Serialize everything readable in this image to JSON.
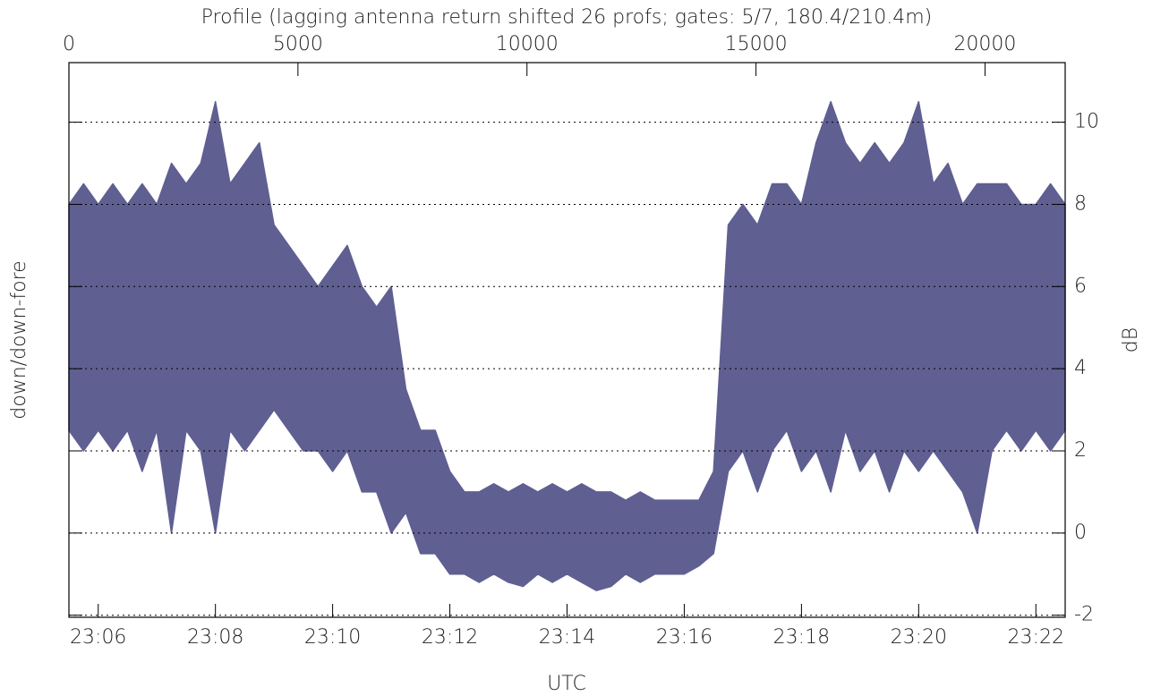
{
  "chart_data": {
    "type": "range",
    "title": "Profile (lagging antenna return shifted 26 profs; gates: 5/7, 180.4/210.4m)",
    "xlabel": "UTC",
    "ylabel": "down/down-fore",
    "y2label": "dB",
    "color": "#5f5f92",
    "grid": true,
    "xlim": [
      1385.5,
      1402.5
    ],
    "xticks": [
      {
        "value": 1386,
        "label": "23:06"
      },
      {
        "value": 1388,
        "label": "23:08"
      },
      {
        "value": 1390,
        "label": "23:10"
      },
      {
        "value": 1392,
        "label": "23:12"
      },
      {
        "value": 1394,
        "label": "23:14"
      },
      {
        "value": 1396,
        "label": "23:16"
      },
      {
        "value": 1398,
        "label": "23:18"
      },
      {
        "value": 1400,
        "label": "23:20"
      },
      {
        "value": 1402,
        "label": "23:22"
      }
    ],
    "x2lim": [
      0,
      21750
    ],
    "x2ticks": [
      0,
      5000,
      10000,
      15000,
      20000
    ],
    "ylim": [
      -2.05,
      11.45
    ],
    "yticks": [
      -2,
      0,
      2,
      4,
      6,
      8,
      10
    ],
    "x": [
      1385.5,
      1385.75,
      1386,
      1386.25,
      1386.5,
      1386.75,
      1387,
      1387.25,
      1387.5,
      1387.75,
      1388,
      1388.25,
      1388.5,
      1388.75,
      1389,
      1389.25,
      1389.5,
      1389.75,
      1390,
      1390.25,
      1390.5,
      1390.75,
      1391,
      1391.25,
      1391.5,
      1391.75,
      1392,
      1392.25,
      1392.5,
      1392.75,
      1393,
      1393.25,
      1393.5,
      1393.75,
      1394,
      1394.25,
      1394.5,
      1394.75,
      1395,
      1395.25,
      1395.5,
      1395.75,
      1396,
      1396.25,
      1396.5,
      1396.75,
      1397,
      1397.25,
      1397.5,
      1397.75,
      1398,
      1398.25,
      1398.5,
      1398.75,
      1399,
      1399.25,
      1399.5,
      1399.75,
      1400,
      1400.25,
      1400.5,
      1400.75,
      1401,
      1401.25,
      1401.5,
      1401.75,
      1402,
      1402.25,
      1402.5
    ],
    "high": [
      8.0,
      8.5,
      8.0,
      8.5,
      8.0,
      8.5,
      8.0,
      9.0,
      8.5,
      9.0,
      10.5,
      8.5,
      9.0,
      9.5,
      7.5,
      7.0,
      6.5,
      6.0,
      6.5,
      7.0,
      6.0,
      5.5,
      6.0,
      3.5,
      2.5,
      2.5,
      1.5,
      1.0,
      1.0,
      1.2,
      1.0,
      1.2,
      1.0,
      1.2,
      1.0,
      1.2,
      1.0,
      1.0,
      0.8,
      1.0,
      0.8,
      0.8,
      0.8,
      0.8,
      1.5,
      7.5,
      8.0,
      7.5,
      8.5,
      8.5,
      8.0,
      9.5,
      10.5,
      9.5,
      9.0,
      9.5,
      9.0,
      9.5,
      10.5,
      8.5,
      9.0,
      8.0,
      8.5,
      8.5,
      8.5,
      8.0,
      8.0,
      8.5,
      8.0
    ],
    "low": [
      2.5,
      2.0,
      2.5,
      2.0,
      2.5,
      1.5,
      2.5,
      0.0,
      2.5,
      2.0,
      0.0,
      2.5,
      2.0,
      2.5,
      3.0,
      2.5,
      2.0,
      2.0,
      1.5,
      2.0,
      1.0,
      1.0,
      0.0,
      0.5,
      -0.5,
      -0.5,
      -1.0,
      -1.0,
      -1.2,
      -1.0,
      -1.2,
      -1.3,
      -1.0,
      -1.2,
      -1.0,
      -1.2,
      -1.4,
      -1.3,
      -1.0,
      -1.2,
      -1.0,
      -1.0,
      -1.0,
      -0.8,
      -0.5,
      1.5,
      2.0,
      1.0,
      2.0,
      2.5,
      1.5,
      2.0,
      1.0,
      2.5,
      1.5,
      2.0,
      1.0,
      2.0,
      1.5,
      2.0,
      1.5,
      1.0,
      0.0,
      2.0,
      2.5,
      2.0,
      2.5,
      2.0,
      2.5
    ]
  }
}
